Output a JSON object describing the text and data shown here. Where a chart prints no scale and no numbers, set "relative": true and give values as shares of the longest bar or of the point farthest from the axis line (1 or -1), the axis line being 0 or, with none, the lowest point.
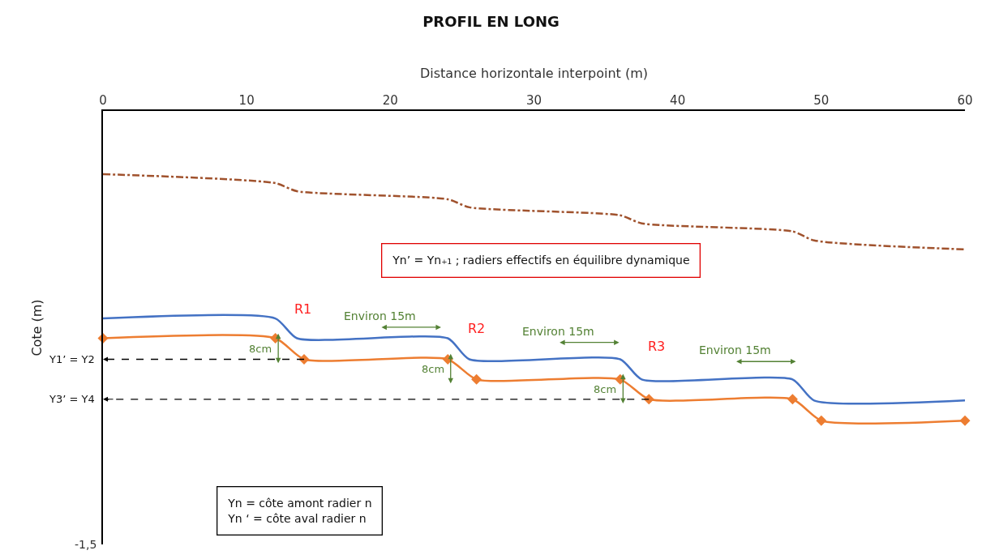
{
  "chart_data": {
    "type": "line",
    "title": "PROFIL EN LONG",
    "xlabel": "Distance horizontale interpoint (m)",
    "ylabel": "Cote (m)",
    "xlim": [
      0,
      60
    ],
    "xticks": [
      0,
      10,
      20,
      30,
      40,
      50,
      60
    ],
    "relative": true,
    "series": [
      {
        "color": "#a0522d",
        "line_style": "dashdot",
        "marker": "none",
        "x": [
          0,
          12,
          13.5,
          24,
          25.5,
          36,
          37.5,
          48,
          49.5,
          60
        ],
        "values": [
          -0.204,
          -0.233,
          -0.259,
          -0.285,
          -0.311,
          -0.337,
          -0.363,
          -0.389,
          -0.418,
          -0.447
        ]
      },
      {
        "color": "#4472c4",
        "line_style": "solid",
        "marker": "none",
        "x": [
          0,
          12,
          13.5,
          24,
          25.5,
          36,
          37.5,
          48,
          49.5,
          60
        ],
        "values": [
          -0.67,
          -0.67,
          -0.734,
          -0.734,
          -0.802,
          -0.802,
          -0.867,
          -0.867,
          -0.935,
          -0.935
        ]
      },
      {
        "color": "#ed7d31",
        "line_style": "solid",
        "marker": "diamond",
        "x": [
          0,
          12,
          14,
          24,
          26,
          36,
          38,
          48,
          50,
          60
        ],
        "values": [
          -0.734,
          -0.734,
          -0.802,
          -0.802,
          -0.867,
          -0.867,
          -0.931,
          -0.931,
          -1,
          -1
        ]
      }
    ],
    "annotations": [
      "Yn’ = Yn₊₁ ; radiers effectifs en équilibre dynamique",
      "Yn = côte amont radier n\nYn ‘ = côte aval radier n",
      {
        "text": "Y1’ = Y2",
        "x": 14,
        "y": -0.802
      },
      {
        "text": "Y3’ = Y4",
        "x": 38,
        "y": -0.931
      },
      "R1",
      "R2",
      "R3",
      "Environ 15m",
      "Environ 15m",
      "Environ 15m",
      "8cm",
      "8cm",
      "8cm",
      "-1,5"
    ]
  }
}
